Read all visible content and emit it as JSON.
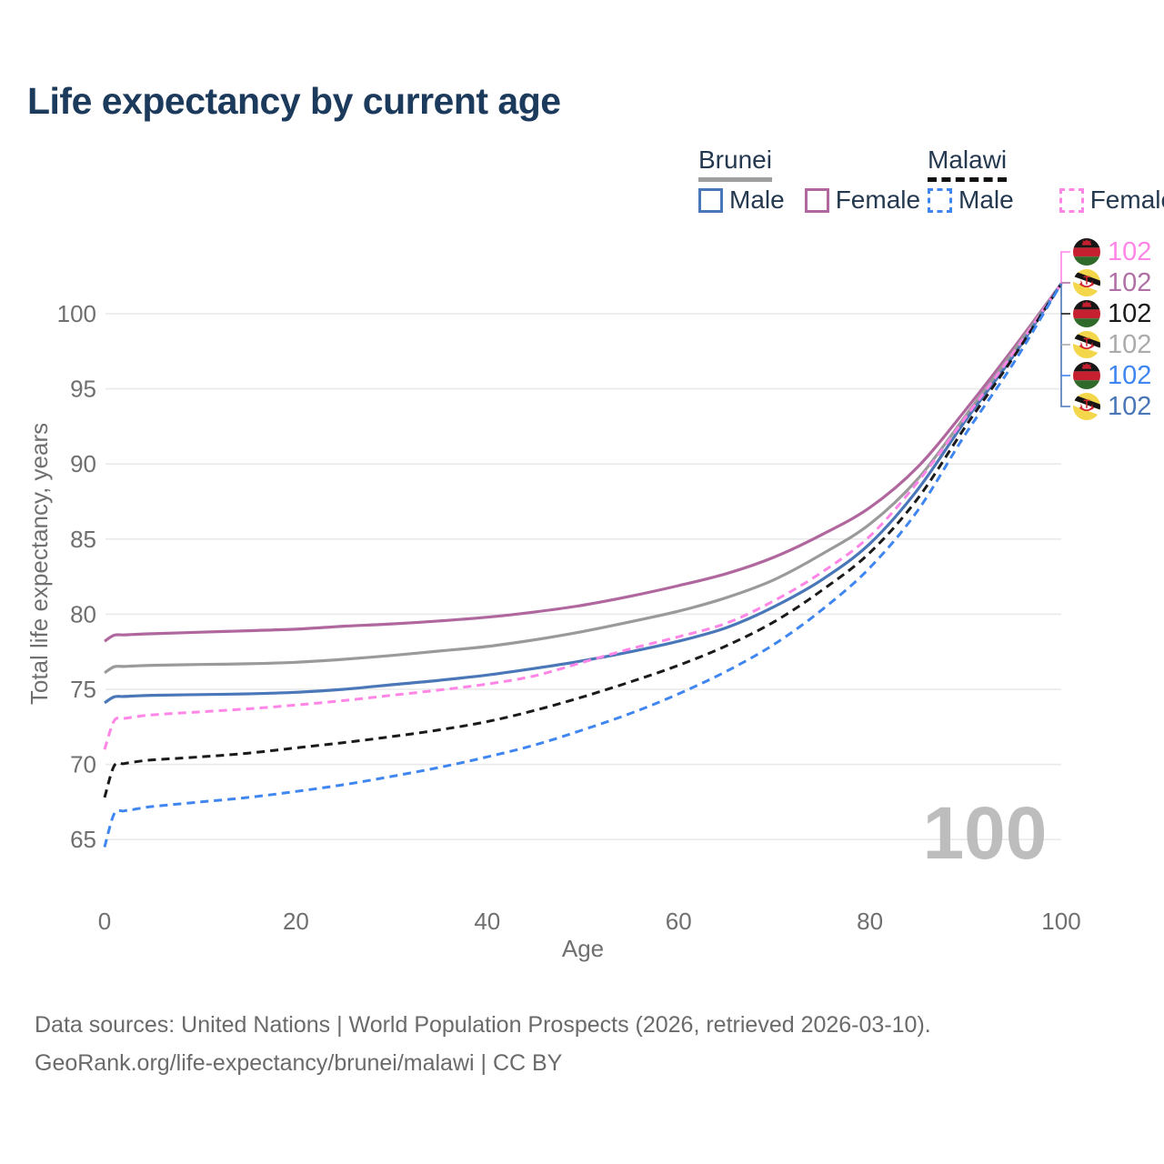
{
  "title": "Life expectancy by current age",
  "legend": {
    "groups": [
      {
        "country": "Brunei",
        "line_style": "solid",
        "underline_color": "#9e9e9e",
        "items": [
          {
            "label": "Male",
            "color": "#4a77b8"
          },
          {
            "label": "Female",
            "color": "#b0679e"
          }
        ]
      },
      {
        "country": "Malawi",
        "line_style": "dashed",
        "underline_color": "#111111",
        "items": [
          {
            "label": "Male",
            "color": "#3f86f0"
          },
          {
            "label": "Female",
            "color": "#ff85e6"
          }
        ]
      }
    ]
  },
  "chart_data": {
    "type": "line",
    "title": "Life expectancy by current age",
    "xlabel": "Age",
    "ylabel": "Total life expectancy, years",
    "x_ticks": [
      0,
      20,
      40,
      60,
      80,
      100
    ],
    "y_ticks": [
      65,
      70,
      75,
      80,
      85,
      90,
      95,
      100
    ],
    "xlim": [
      0,
      100
    ],
    "ylim": [
      63,
      103
    ],
    "grid": "horizontal",
    "legend_position": "top-right",
    "x": [
      0,
      1,
      2,
      3,
      5,
      10,
      15,
      20,
      25,
      30,
      35,
      40,
      45,
      50,
      55,
      60,
      65,
      70,
      75,
      80,
      85,
      90,
      95,
      100
    ],
    "series": [
      {
        "name": "Brunei Female",
        "color": "#b0679e",
        "dash": "solid",
        "values": [
          78.2,
          78.6,
          78.62,
          78.65,
          78.7,
          78.8,
          78.9,
          79.0,
          79.2,
          79.35,
          79.55,
          79.8,
          80.15,
          80.6,
          81.2,
          81.9,
          82.7,
          83.8,
          85.3,
          87.1,
          89.8,
          93.6,
          97.7,
          102
        ]
      },
      {
        "name": "Brunei Total",
        "color": "#9a9a9a",
        "dash": "solid",
        "values": [
          76.1,
          76.5,
          76.52,
          76.55,
          76.6,
          76.65,
          76.7,
          76.8,
          77.0,
          77.25,
          77.55,
          77.85,
          78.3,
          78.85,
          79.5,
          80.2,
          81.1,
          82.3,
          84.0,
          86.0,
          89.0,
          93.2,
          97.5,
          102
        ]
      },
      {
        "name": "Brunei Male",
        "color": "#4a77b8",
        "dash": "solid",
        "values": [
          74.1,
          74.5,
          74.52,
          74.55,
          74.6,
          74.65,
          74.7,
          74.8,
          75.0,
          75.3,
          75.6,
          75.95,
          76.4,
          76.9,
          77.5,
          78.2,
          79.1,
          80.5,
          82.3,
          84.7,
          88.3,
          92.9,
          97.2,
          102
        ]
      },
      {
        "name": "Malawi Female",
        "color": "#ff85e6",
        "dash": "dashed",
        "values": [
          71.0,
          72.9,
          73.05,
          73.15,
          73.3,
          73.5,
          73.7,
          73.95,
          74.25,
          74.6,
          74.95,
          75.35,
          75.9,
          76.8,
          77.7,
          78.5,
          79.4,
          80.9,
          82.8,
          85.2,
          88.8,
          93.1,
          97.4,
          102
        ]
      },
      {
        "name": "Malawi Total",
        "color": "#1a1a1a",
        "dash": "dashed",
        "values": [
          67.8,
          69.9,
          70.05,
          70.15,
          70.3,
          70.5,
          70.75,
          71.1,
          71.45,
          71.85,
          72.3,
          72.85,
          73.6,
          74.5,
          75.5,
          76.6,
          77.9,
          79.5,
          81.6,
          84.1,
          87.7,
          92.5,
          97.1,
          102
        ]
      },
      {
        "name": "Malawi Male",
        "color": "#3f86f0",
        "dash": "dashed",
        "values": [
          64.5,
          66.7,
          66.9,
          67.0,
          67.2,
          67.5,
          67.8,
          68.2,
          68.65,
          69.2,
          69.8,
          70.5,
          71.3,
          72.3,
          73.4,
          74.7,
          76.2,
          78.0,
          80.3,
          83.1,
          86.9,
          92.0,
          96.7,
          102
        ]
      }
    ]
  },
  "end_labels": [
    {
      "flag": "malawi-flag-icon",
      "series": "Malawi Female",
      "value": "102",
      "color": "#ff85e6"
    },
    {
      "flag": "brunei-flag-icon",
      "series": "Brunei Female",
      "value": "102",
      "color": "#b06fa5"
    },
    {
      "flag": "malawi-flag-icon",
      "series": "Malawi Total",
      "value": "102",
      "color": "#1a1a1a"
    },
    {
      "flag": "brunei-flag-icon",
      "series": "Brunei Total",
      "value": "102",
      "color": "#ababab"
    },
    {
      "flag": "malawi-flag-icon",
      "series": "Malawi Male",
      "value": "102",
      "color": "#3f86f0"
    },
    {
      "flag": "brunei-flag-icon",
      "series": "Brunei Male",
      "value": "102",
      "color": "#4a77b8"
    }
  ],
  "watermark": {
    "text": "100"
  },
  "footer": {
    "line1": "Data sources: United Nations | World Population Prospects (2026, retrieved 2026-03-10).",
    "line2": "GeoRank.org/life-expectancy/brunei/malawi | CC BY"
  },
  "colors": {
    "title_text": "#1c3a5c",
    "tick_text": "#6f6f6f",
    "gridline": "#e9e9e9",
    "watermark": "#bdbdbd",
    "footer_text": "#6a6a6a"
  }
}
